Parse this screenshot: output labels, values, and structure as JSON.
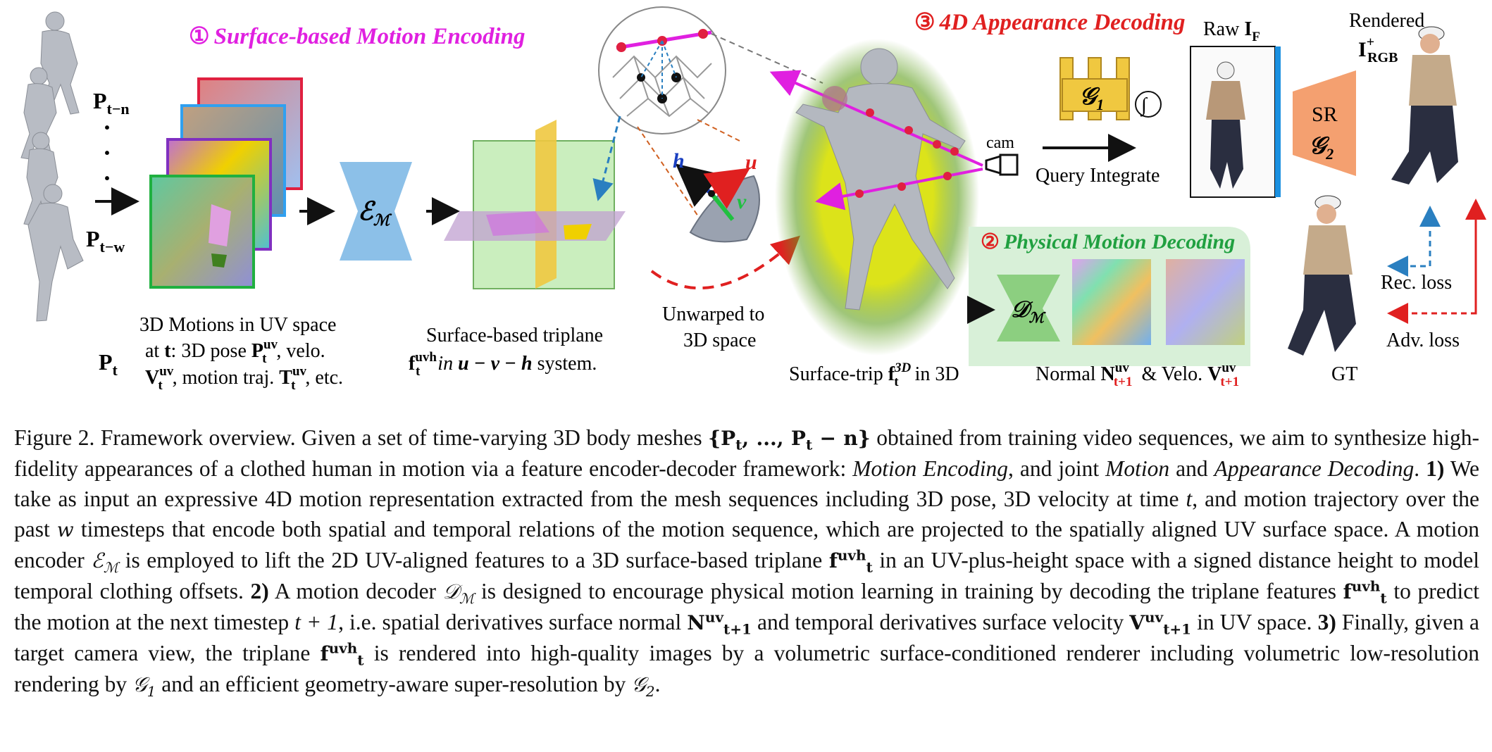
{
  "figure": {
    "section1_num": "①",
    "section1_title": "Surface-based Motion Encoding",
    "section2_num": "②",
    "section2_title": "Physical Motion Decoding",
    "section3_num": "③",
    "section3_title": "4D Appearance Decoding",
    "pose_labels": {
      "pt_n": "P",
      "pt_n_sub": "t−n",
      "dots": "·",
      "pt_w": "P",
      "pt_w_sub": "t−w",
      "pt": "P",
      "pt_sub": "t"
    },
    "uv_caption": {
      "line1": "3D Motions in UV space",
      "line2_pre": "at ",
      "line2_t": "t",
      "line2_mid": ": 3D pose ",
      "line2_P": "P",
      "line2_sup": "uv",
      "line2_sub": "t",
      "line2_post": ", velo.",
      "line3_V": "V",
      "line3_sup": "uv",
      "line3_sub": "t",
      "line3_mid": ", motion traj. ",
      "line3_T": "T",
      "line3_tsup": "uv",
      "line3_tsub": "t",
      "line3_post": ", etc."
    },
    "encoder_label": "ℰ",
    "encoder_sub": "ℳ",
    "triplane_caption": {
      "line1": "Surface-based triplane",
      "f": "f",
      "sup": "uvh",
      "sub": "t",
      "in": " in ",
      "uvh": "u − v − h",
      "post": " system."
    },
    "unwarp_label_1": "Unwarped  to",
    "unwarp_label_2": "3D space",
    "axis_u": "u",
    "axis_v": "v",
    "axis_h": "h",
    "surface_trip": {
      "pre": "Surface-trip ",
      "f": "f",
      "sup": "3D",
      "sub": "t",
      "post": " in 3D"
    },
    "cam_label": "cam",
    "g1_label": "𝒢",
    "g1_sub": "1",
    "integral": "∫",
    "query_label": "Query Integrate",
    "raw_label": "Raw ",
    "raw_I": "I",
    "raw_sub": "F",
    "sr_label": "SR",
    "g2_label": "𝒢",
    "g2_sub": "2",
    "rendered_label": "Rendered",
    "rendered_I": "I",
    "rendered_sup": "+",
    "rendered_sub": "RGB",
    "gt_label": "GT",
    "rec_loss": "Rec. loss",
    "adv_loss": "Adv. loss",
    "decoder_label": "𝒟",
    "decoder_sub": "ℳ",
    "normal_caption": {
      "pre": "Normal ",
      "N": "N",
      "Nsup": "uv",
      "Nsub": "t+1",
      "mid": " & Velo. ",
      "V": "V",
      "Vsup": "uv",
      "Vsub": "t+1"
    }
  },
  "caption": {
    "lead": "Figure 2. Framework overview. Given a set of time-varying 3D body meshes ",
    "set": "{P",
    "set_t1": "t",
    "set_mid": ", ..., P",
    "set_t2": "t",
    "set_end": " − n}",
    "p1": " obtained from training video sequences, we aim to synthesize high-fidelity appearances of a clothed human in motion via a feature encoder-decoder framework: ",
    "motion_encoding": "Motion Encoding",
    "p2": ", and joint ",
    "motion": "Motion",
    "p3": " and ",
    "appearance_decoding": "Appearance Decoding",
    "p4": ". ",
    "n1": "1)",
    "p5": " We take as input an expressive 4D motion representation extracted from the mesh sequences including 3D pose, 3D velocity at time ",
    "t": "t",
    "p6": ", and motion trajectory over the past ",
    "w": "w",
    "p7": " timesteps that encode both spatial and temporal relations of the motion sequence, which are projected to the spatially aligned UV surface space.  A motion encoder ",
    "enc": "ℰ",
    "enc_sub": "ℳ",
    "p8": " is employed to lift the 2D UV-aligned features to a 3D surface-based triplane ",
    "f1": "f",
    "f1_sup": "uvh",
    "f1_sub": "t",
    "p9": " in an UV-plus-height space with a signed distance height to model temporal clothing offsets. ",
    "n2": "2)",
    "p10": " A motion decoder ",
    "dec": "𝒟",
    "dec_sub": "ℳ",
    "p11": " is designed to encourage physical motion learning in training by decoding the triplane features ",
    "f2": "f",
    "f2_sup": "uvh",
    "f2_sub": "t",
    "p12": " to predict the motion at the next timestep ",
    "t1": "t + 1",
    "p13": ", i.e.  spatial derivatives surface normal ",
    "N": "N",
    "N_sup": "uv",
    "N_sub": "t+1",
    "p14": " and temporal derivatives surface velocity ",
    "V": "V",
    "V_sup": "uv",
    "V_sub": "t+1",
    "p15": " in UV space. ",
    "n3": "3)",
    "p16": " Finally, given a target camera view, the triplane ",
    "f3": "f",
    "f3_sup": "uvh",
    "f3_sub": "t",
    "p17": " is rendered into high-quality images by a volumetric surface-conditioned renderer including volumetric low-resolution rendering by ",
    "g1": "𝒢",
    "g1_sub": "1",
    "p18": " and an efficient geometry-aware super-resolution by ",
    "g2": "𝒢",
    "g2_sub": "2",
    "p19": "."
  }
}
